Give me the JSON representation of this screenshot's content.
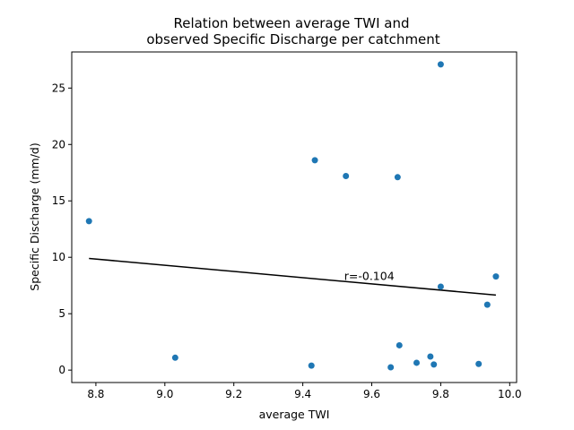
{
  "chart_data": {
    "type": "scatter",
    "title": [
      "Relation between average TWI and",
      "observed Specific Discharge  per catchment"
    ],
    "xlabel": "average TWI",
    "ylabel": "Specific Discharge (mm/d)",
    "xlim": [
      8.73,
      10.02
    ],
    "ylim": [
      -1.1,
      28.2
    ],
    "xticks": [
      8.8,
      9.0,
      9.2,
      9.4,
      9.6,
      9.8,
      10.0
    ],
    "xtick_labels": [
      "8.8",
      "9.0",
      "9.2",
      "9.4",
      "9.6",
      "9.8",
      "10.0"
    ],
    "yticks": [
      0,
      5,
      10,
      15,
      20,
      25
    ],
    "ytick_labels": [
      "0",
      "5",
      "10",
      "15",
      "20",
      "25"
    ],
    "grid": false,
    "points": [
      {
        "x": 8.78,
        "y": 13.2
      },
      {
        "x": 9.03,
        "y": 1.1
      },
      {
        "x": 9.425,
        "y": 0.4
      },
      {
        "x": 9.435,
        "y": 18.6
      },
      {
        "x": 9.525,
        "y": 17.2
      },
      {
        "x": 9.655,
        "y": 0.25
      },
      {
        "x": 9.675,
        "y": 17.1
      },
      {
        "x": 9.68,
        "y": 2.2
      },
      {
        "x": 9.73,
        "y": 0.65
      },
      {
        "x": 9.77,
        "y": 1.2
      },
      {
        "x": 9.78,
        "y": 0.5
      },
      {
        "x": 9.8,
        "y": 27.1
      },
      {
        "x": 9.8,
        "y": 7.4
      },
      {
        "x": 9.91,
        "y": 0.55
      },
      {
        "x": 9.935,
        "y": 5.8
      },
      {
        "x": 9.96,
        "y": 8.3
      }
    ],
    "point_color": "#1f77b4",
    "fit_line": {
      "x": [
        8.78,
        9.96
      ],
      "y": [
        9.9,
        6.65
      ],
      "color": "#000000"
    },
    "annotation": {
      "text": "r=-0.104",
      "x": 9.52,
      "y": 8.0
    }
  }
}
